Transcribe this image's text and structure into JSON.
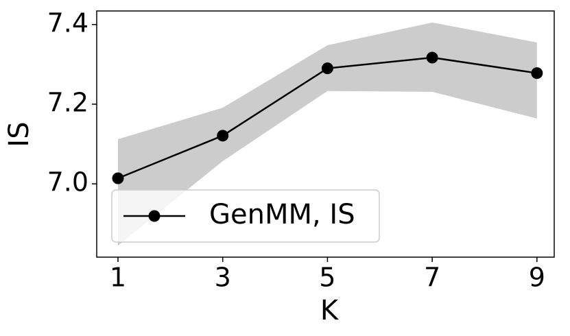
{
  "chart_data": {
    "type": "line",
    "x_label": "K",
    "y_label": "IS",
    "x": [
      1,
      3,
      5,
      7,
      9
    ],
    "series": [
      {
        "name": "GenMM, IS",
        "color": "#000000",
        "band_color": "#cccccc",
        "values": [
          7.014,
          7.121,
          7.29,
          7.317,
          7.278
        ],
        "upper": [
          7.112,
          7.191,
          7.348,
          7.405,
          7.355
        ],
        "lower": [
          6.845,
          7.057,
          7.233,
          7.231,
          7.164
        ]
      }
    ],
    "xlim": [
      0.594,
      9.33
    ],
    "ylim": [
      6.816,
      7.434
    ],
    "xticks": [
      1,
      3,
      5,
      7,
      9
    ],
    "yticks": [
      {
        "value": 7,
        "label": "7.0"
      },
      7.2,
      7.4
    ],
    "legend": "lower left"
  }
}
